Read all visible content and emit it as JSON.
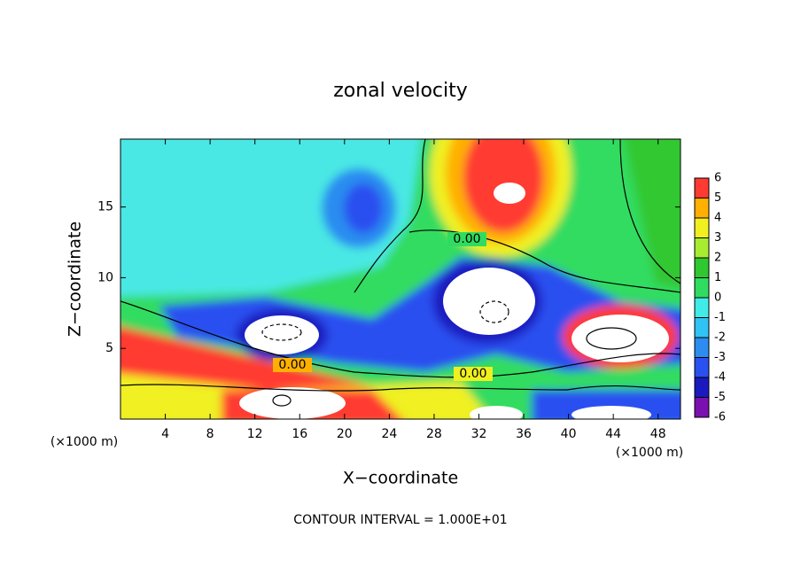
{
  "chart_data": {
    "type": "contour",
    "title": "zonal velocity",
    "xlabel": "X−coordinate",
    "ylabel": "Z−coordinate",
    "x_unit": "(×1000 m)",
    "y_unit": "(×1000 m)",
    "footer": "CONTOUR INTERVAL = 1.000E+01",
    "xlim": [
      0,
      50
    ],
    "ylim": [
      0,
      19.8
    ],
    "xticks": [
      4,
      8,
      12,
      16,
      20,
      24,
      28,
      32,
      36,
      40,
      44,
      48
    ],
    "yticks": [
      5,
      10,
      15
    ],
    "contour_labels": [
      "0.00",
      "0.00",
      "0.00"
    ],
    "colorbar": {
      "levels": [
        -6,
        -5,
        -4,
        -3,
        -2,
        -1,
        0,
        1,
        2,
        3,
        4,
        5,
        6
      ],
      "colors": [
        "#7a10b0",
        "#1a1ac0",
        "#2a50f0",
        "#2c8cf0",
        "#30c4f4",
        "#40ece8",
        "#30dc60",
        "#30c830",
        "#a8ec30",
        "#f0f020",
        "#ffb000",
        "#ff3a30"
      ]
    }
  }
}
